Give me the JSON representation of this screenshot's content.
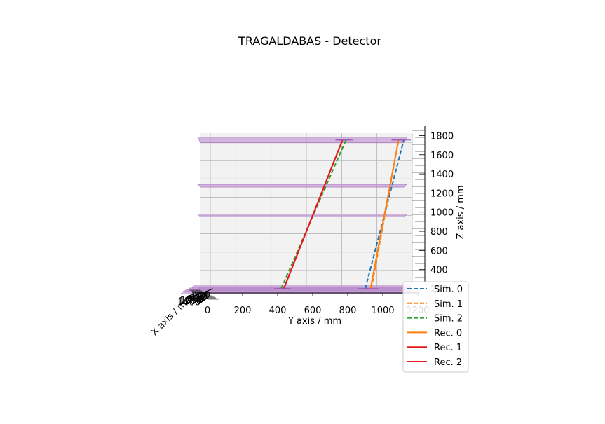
{
  "chart_data": {
    "type": "line",
    "projection": "3d",
    "title": "TRAGALDABAS - Detector",
    "xlabel": "X axis / mm",
    "ylabel": "Y axis / mm",
    "zlabel": "Z axis / mm",
    "ylim": [
      0,
      1200
    ],
    "zlim": [
      200,
      1900
    ],
    "y_ticks": [
      "0",
      "200",
      "400",
      "600",
      "800",
      "1000",
      "1200"
    ],
    "z_ticks": [
      "200",
      "400",
      "600",
      "800",
      "1000",
      "1200",
      "1400",
      "1600",
      "1800"
    ],
    "x_ticks": [
      "0",
      "200",
      "400",
      "600",
      "800",
      "1000",
      "1200",
      "1400"
    ],
    "grid": true,
    "legend_position": "right",
    "planes": {
      "color": "#c39bd3",
      "z": [
        200,
        1000,
        1325,
        1825
      ]
    },
    "series": [
      {
        "name": "Sim. 0",
        "style": "dashed",
        "color": "#1f77b4",
        "points": [
          {
            "y": 900,
            "z": 200
          },
          {
            "y": 1120,
            "z": 1825
          }
        ]
      },
      {
        "name": "Sim. 1",
        "style": "dashed",
        "color": "#ff7f0e",
        "points": [
          {
            "y": 935,
            "z": 200
          },
          {
            "y": 1090,
            "z": 1825
          }
        ]
      },
      {
        "name": "Sim. 2",
        "style": "dashed",
        "color": "#2ca02c",
        "points": [
          {
            "y": 420,
            "z": 200
          },
          {
            "y": 790,
            "z": 1825
          }
        ]
      },
      {
        "name": "Rec. 0",
        "style": "solid",
        "color": "#ff7f0e",
        "points": [
          {
            "y": 930,
            "z": 200
          },
          {
            "y": 1090,
            "z": 1825
          }
        ]
      },
      {
        "name": "Rec. 1",
        "style": "solid",
        "color": "#e31a1c",
        "points": [
          {
            "y": 435,
            "z": 200
          },
          {
            "y": 770,
            "z": 1825
          }
        ]
      },
      {
        "name": "Rec. 2",
        "style": "solid",
        "color": "#e31a1c",
        "points": [
          {
            "y": 435,
            "z": 200
          },
          {
            "y": 770,
            "z": 1825
          }
        ]
      }
    ]
  }
}
